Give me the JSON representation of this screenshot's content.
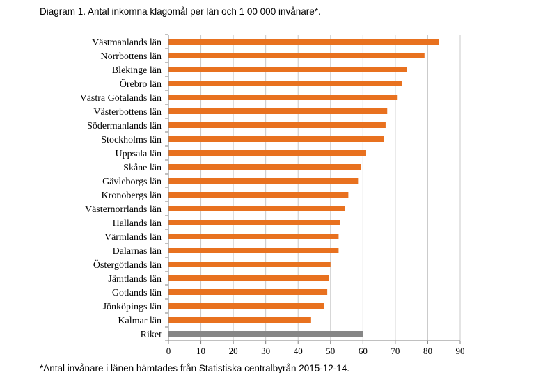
{
  "header": {
    "title": "Diagram 1. Antal inkomna klagomål per län och 1 00 000 invånare*."
  },
  "footer": {
    "note": "*Antal invånare i länen hämtades från Statistiska centralbyrån 2015-12-14."
  },
  "colors": {
    "bar": "#e8711f",
    "total_bar": "#868686",
    "grid": "#c8c8c8",
    "axis": "#808080"
  },
  "chart_data": {
    "type": "bar",
    "orientation": "horizontal",
    "categories": [
      "Västmanlands län",
      "Norrbottens län",
      "Blekinge län",
      "Örebro län",
      "Västra Götalands län",
      "Västerbottens län",
      "Södermanlands län",
      "Stockholms län",
      "Uppsala län",
      "Skåne län",
      "Gävleborgs län",
      "Kronobergs län",
      "Västernorrlands län",
      "Hallands län",
      "Värmlands län",
      "Dalarnas län",
      "Östergötlands län",
      "Jämtlands län",
      "Gotlands län",
      "Jönköpings län",
      "Kalmar län",
      "Riket"
    ],
    "values": [
      83.5,
      79,
      73.5,
      72,
      70.5,
      67.5,
      67,
      66.5,
      61,
      59.5,
      58.5,
      55.5,
      54.5,
      53,
      52.5,
      52.5,
      50,
      49.5,
      49,
      48,
      44,
      60
    ],
    "highlight_category": "Riket",
    "xlim": [
      0,
      90
    ],
    "xticks": [
      0,
      10,
      20,
      30,
      40,
      50,
      60,
      70,
      80,
      90
    ],
    "grid": true,
    "legend": false,
    "xlabel": "",
    "ylabel": ""
  }
}
